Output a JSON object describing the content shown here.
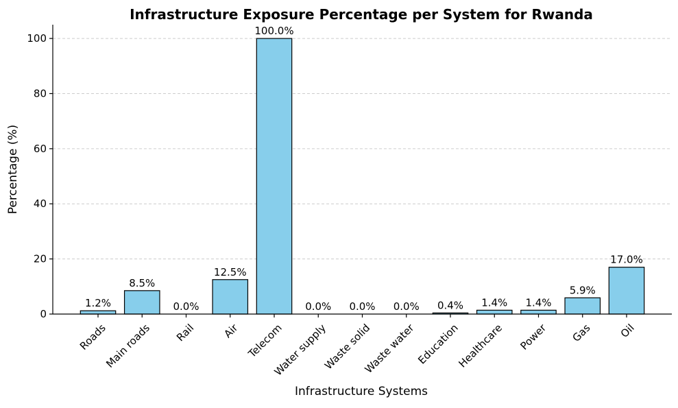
{
  "colors": {
    "bar_fill": "#87CEEB",
    "bar_edge": "#000000",
    "grid": "#cccccc"
  },
  "chart_data": {
    "type": "bar",
    "title": "Infrastructure Exposure Percentage per System for Rwanda",
    "xlabel": "Infrastructure Systems",
    "ylabel": "Percentage (%)",
    "ylim": [
      0,
      105
    ],
    "yticks": [
      0,
      20,
      40,
      60,
      80,
      100
    ],
    "grid": "y-dashed",
    "categories": [
      "Roads",
      "Main roads",
      "Rail",
      "Air",
      "Telecom",
      "Water supply",
      "Waste solid",
      "Waste water",
      "Education",
      "Healthcare",
      "Power",
      "Gas",
      "Oil"
    ],
    "values": [
      1.2,
      8.5,
      0.0,
      12.5,
      100.0,
      0.0,
      0.0,
      0.0,
      0.4,
      1.4,
      1.4,
      5.9,
      17.0
    ],
    "data_labels": [
      "1.2%",
      "8.5%",
      "0.0%",
      "12.5%",
      "100.0%",
      "0.0%",
      "0.0%",
      "0.0%",
      "0.4%",
      "1.4%",
      "1.4%",
      "5.9%",
      "17.0%"
    ]
  }
}
